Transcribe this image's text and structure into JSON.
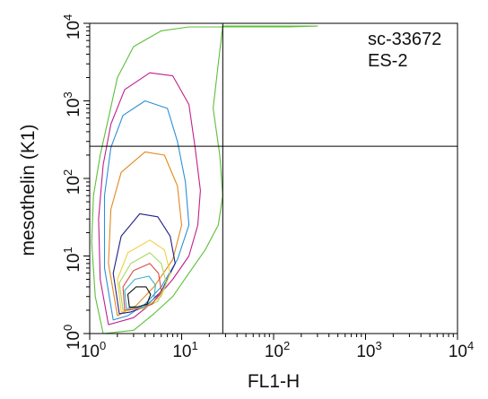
{
  "chart_data": {
    "type": "contour",
    "title": "",
    "xlabel": "FL1-H",
    "ylabel": "mesothelin (K1)",
    "x_scale": "log",
    "y_scale": "log",
    "xlim": [
      1,
      10000
    ],
    "ylim": [
      1,
      10000
    ],
    "x_ticks": [
      {
        "base": "10",
        "exp": "0",
        "value": 1
      },
      {
        "base": "10",
        "exp": "1",
        "value": 10
      },
      {
        "base": "10",
        "exp": "2",
        "value": 100
      },
      {
        "base": "10",
        "exp": "3",
        "value": 1000
      },
      {
        "base": "10",
        "exp": "4",
        "value": 10000
      }
    ],
    "y_ticks": [
      {
        "base": "10",
        "exp": "0",
        "value": 1
      },
      {
        "base": "10",
        "exp": "1",
        "value": 10
      },
      {
        "base": "10",
        "exp": "2",
        "value": 100
      },
      {
        "base": "10",
        "exp": "3",
        "value": 1000
      },
      {
        "base": "10",
        "exp": "4",
        "value": 10000
      }
    ],
    "annotations": [
      "sc-33672",
      "ES-2"
    ],
    "gate": {
      "x": 28,
      "y": 260
    },
    "grid": false,
    "legend": "none",
    "contours": [
      {
        "color": "#5cbf3a",
        "points": [
          [
            1.4,
            1.0
          ],
          [
            1.15,
            3
          ],
          [
            1.05,
            15
          ],
          [
            1.1,
            60
          ],
          [
            1.3,
            200
          ],
          [
            1.6,
            600
          ],
          [
            2.0,
            2000
          ],
          [
            3.0,
            5000
          ],
          [
            6.0,
            8000
          ],
          [
            12,
            9000
          ],
          [
            25,
            9000
          ],
          [
            60,
            9000
          ],
          [
            150,
            9000
          ],
          [
            300,
            9200
          ],
          [
            28,
            9200
          ],
          [
            25,
            3000
          ],
          [
            22,
            800
          ],
          [
            26,
            200
          ],
          [
            28,
            60
          ],
          [
            25,
            25
          ],
          [
            18,
            12
          ],
          [
            12,
            6
          ],
          [
            8,
            3
          ],
          [
            5,
            1.8
          ],
          [
            3,
            1.1
          ]
        ]
      },
      {
        "color": "#c0208c",
        "points": [
          [
            1.6,
            1.3
          ],
          [
            1.3,
            5
          ],
          [
            1.25,
            30
          ],
          [
            1.4,
            150
          ],
          [
            1.7,
            500
          ],
          [
            2.4,
            1400
          ],
          [
            4.5,
            2300
          ],
          [
            8.0,
            2100
          ],
          [
            12,
            900
          ],
          [
            14,
            250
          ],
          [
            16,
            70
          ],
          [
            15,
            25
          ],
          [
            12,
            10
          ],
          [
            8,
            5
          ],
          [
            5,
            2.6
          ],
          [
            3,
            1.6
          ]
        ]
      },
      {
        "color": "#2c8fd6",
        "points": [
          [
            1.8,
            1.5
          ],
          [
            1.45,
            7
          ],
          [
            1.45,
            60
          ],
          [
            1.7,
            250
          ],
          [
            2.3,
            650
          ],
          [
            4.0,
            1000
          ],
          [
            7.0,
            800
          ],
          [
            9.0,
            300
          ],
          [
            11,
            90
          ],
          [
            12,
            25
          ],
          [
            9,
            9
          ],
          [
            6,
            4
          ],
          [
            4,
            2.4
          ],
          [
            2.6,
            1.7
          ]
        ]
      },
      {
        "color": "#e08a1e",
        "points": [
          [
            2.0,
            1.7
          ],
          [
            1.6,
            8
          ],
          [
            1.7,
            40
          ],
          [
            2.2,
            120
          ],
          [
            4,
            220
          ],
          [
            6.5,
            200
          ],
          [
            9.0,
            80
          ],
          [
            10,
            25
          ],
          [
            8,
            9
          ],
          [
            5,
            4
          ],
          [
            3.2,
            2.3
          ]
        ]
      },
      {
        "color": "#1f1f8c",
        "points": [
          [
            2.1,
            1.8
          ],
          [
            1.8,
            6
          ],
          [
            2.2,
            18
          ],
          [
            3.5,
            35
          ],
          [
            5.5,
            32
          ],
          [
            7.5,
            18
          ],
          [
            8.5,
            8
          ],
          [
            6,
            3.5
          ],
          [
            4,
            2.2
          ],
          [
            2.8,
            1.9
          ]
        ]
      },
      {
        "color": "#f0d040",
        "points": [
          [
            2.2,
            1.9
          ],
          [
            2.0,
            5
          ],
          [
            2.6,
            11
          ],
          [
            4.5,
            16
          ],
          [
            6.5,
            12
          ],
          [
            7.5,
            6
          ],
          [
            6,
            3
          ],
          [
            4,
            2.2
          ]
        ]
      },
      {
        "color": "#a8d860",
        "points": [
          [
            2.3,
            2.0
          ],
          [
            2.1,
            4.5
          ],
          [
            2.8,
            8
          ],
          [
            4.5,
            11
          ],
          [
            6,
            8
          ],
          [
            6.8,
            4.5
          ],
          [
            5.5,
            2.6
          ],
          [
            3.8,
            2.1
          ]
        ]
      },
      {
        "color": "#e04848",
        "points": [
          [
            2.4,
            2.0
          ],
          [
            2.3,
            4
          ],
          [
            3,
            6.5
          ],
          [
            4.5,
            8
          ],
          [
            5.6,
            6
          ],
          [
            6,
            3.6
          ],
          [
            4.8,
            2.4
          ],
          [
            3.4,
            2.1
          ]
        ]
      },
      {
        "color": "#3ab0c8",
        "points": [
          [
            2.5,
            2.1
          ],
          [
            2.4,
            3.6
          ],
          [
            3.1,
            5
          ],
          [
            4.4,
            5.5
          ],
          [
            5.2,
            4.2
          ],
          [
            5.0,
            2.8
          ],
          [
            3.8,
            2.2
          ]
        ]
      },
      {
        "color": "#111111",
        "points": [
          [
            2.7,
            2.2
          ],
          [
            2.6,
            3.2
          ],
          [
            3.2,
            4.0
          ],
          [
            4.1,
            4.0
          ],
          [
            4.6,
            3.2
          ],
          [
            4.2,
            2.4
          ],
          [
            3.3,
            2.2
          ]
        ]
      }
    ]
  }
}
